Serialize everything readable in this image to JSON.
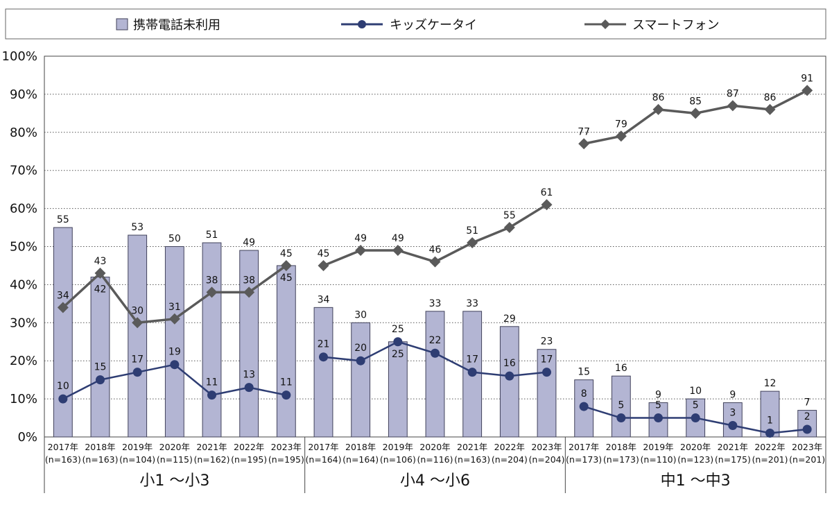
{
  "chart_data": {
    "type": "bar",
    "legend": {
      "placement": "top",
      "entries": [
        {
          "name": "携帯電話未利用",
          "kind": "bar"
        },
        {
          "name": "キッズケータイ",
          "kind": "line"
        },
        {
          "name": "スマートフォン",
          "kind": "line"
        }
      ]
    },
    "ylim": [
      0,
      100
    ],
    "yticks": [
      "0%",
      "10%",
      "20%",
      "30%",
      "40%",
      "50%",
      "60%",
      "70%",
      "80%",
      "90%",
      "100%"
    ],
    "grid": true,
    "colors": {
      "bar_fill": "#b3b5d3",
      "bar_stroke": "#40415a",
      "kids": "#2e3d73",
      "smartphone": "#5a5a5a",
      "grid": "#555555"
    },
    "groups": [
      {
        "name": "小1 ～小3",
        "categories": [
          {
            "year": "2017年",
            "n": "(n=163)"
          },
          {
            "year": "2018年",
            "n": "(n=163)"
          },
          {
            "year": "2019年",
            "n": "(n=104)"
          },
          {
            "year": "2020年",
            "n": "(n=115)"
          },
          {
            "year": "2021年",
            "n": "(n=162)"
          },
          {
            "year": "2022年",
            "n": "(n=195)"
          },
          {
            "year": "2023年",
            "n": "(n=195)"
          }
        ],
        "series": [
          {
            "name": "携帯電話未利用",
            "values": [
              55,
              42,
              53,
              50,
              51,
              49,
              45
            ]
          },
          {
            "name": "キッズケータイ",
            "values": [
              10,
              15,
              17,
              19,
              11,
              13,
              11
            ]
          },
          {
            "name": "スマートフォン",
            "values": [
              34,
              43,
              30,
              31,
              38,
              38,
              45
            ]
          }
        ]
      },
      {
        "name": "小4 ～小6",
        "categories": [
          {
            "year": "2017年",
            "n": "(n=164)"
          },
          {
            "year": "2018年",
            "n": "(n=164)"
          },
          {
            "year": "2019年",
            "n": "(n=106)"
          },
          {
            "year": "2020年",
            "n": "(n=116)"
          },
          {
            "year": "2021年",
            "n": "(n=163)"
          },
          {
            "year": "2022年",
            "n": "(n=204)"
          },
          {
            "year": "2023年",
            "n": "(n=204)"
          }
        ],
        "series": [
          {
            "name": "携帯電話未利用",
            "values": [
              34,
              30,
              25,
              33,
              33,
              29,
              23
            ]
          },
          {
            "name": "キッズケータイ",
            "values": [
              21,
              20,
              25,
              22,
              17,
              16,
              17
            ]
          },
          {
            "name": "スマートフォン",
            "values": [
              45,
              49,
              49,
              46,
              51,
              55,
              61
            ]
          }
        ]
      },
      {
        "name": "中1 ～中3",
        "categories": [
          {
            "year": "2017年",
            "n": "(n=173)"
          },
          {
            "year": "2018年",
            "n": "(n=173)"
          },
          {
            "year": "2019年",
            "n": "(n=110)"
          },
          {
            "year": "2020年",
            "n": "(n=123)"
          },
          {
            "year": "2021年",
            "n": "(n=175)"
          },
          {
            "year": "2022年",
            "n": "(n=201)"
          },
          {
            "year": "2023年",
            "n": "(n=201)"
          }
        ],
        "series": [
          {
            "name": "携帯電話未利用",
            "values": [
              15,
              16,
              9,
              10,
              9,
              12,
              7
            ]
          },
          {
            "name": "キッズケータイ",
            "values": [
              8,
              5,
              5,
              5,
              3,
              1,
              2
            ]
          },
          {
            "name": "スマートフォン",
            "values": [
              77,
              79,
              86,
              85,
              87,
              86,
              91
            ]
          }
        ]
      }
    ]
  }
}
